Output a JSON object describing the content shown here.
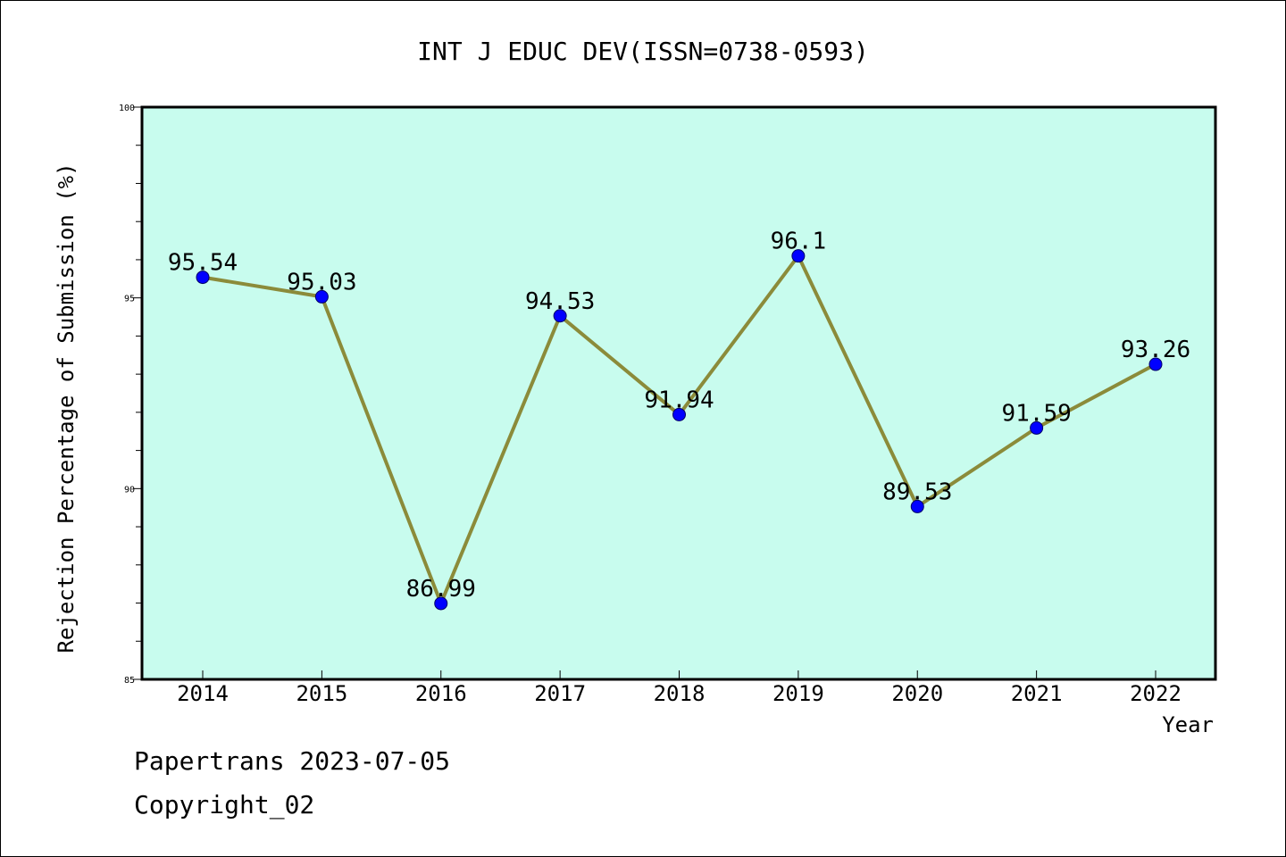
{
  "chart_data": {
    "type": "line",
    "title": "INT J EDUC DEV(ISSN=0738-0593)",
    "xlabel": "Year",
    "ylabel": "Rejection Percentage of Submission (%)",
    "ylim": [
      85,
      100
    ],
    "yticks": [
      "85",
      "90",
      "95",
      "100"
    ],
    "categories": [
      "2014",
      "2015",
      "2016",
      "2017",
      "2018",
      "2019",
      "2020",
      "2021",
      "2022"
    ],
    "values": [
      95.54,
      95.03,
      86.99,
      94.53,
      91.94,
      96.1,
      89.53,
      91.59,
      93.26
    ],
    "data_labels": [
      "95.54",
      "95.03",
      "86.99",
      "94.53",
      "91.94",
      "96.1",
      "89.53",
      "91.59",
      "93.26"
    ],
    "grid": false,
    "colors": {
      "plot_background": "#c8fcee",
      "line": "#8b8b3a",
      "marker": "#0000ff"
    }
  },
  "footer": {
    "line1": "Papertrans 2023-07-05",
    "line2": "Copyright_02"
  }
}
